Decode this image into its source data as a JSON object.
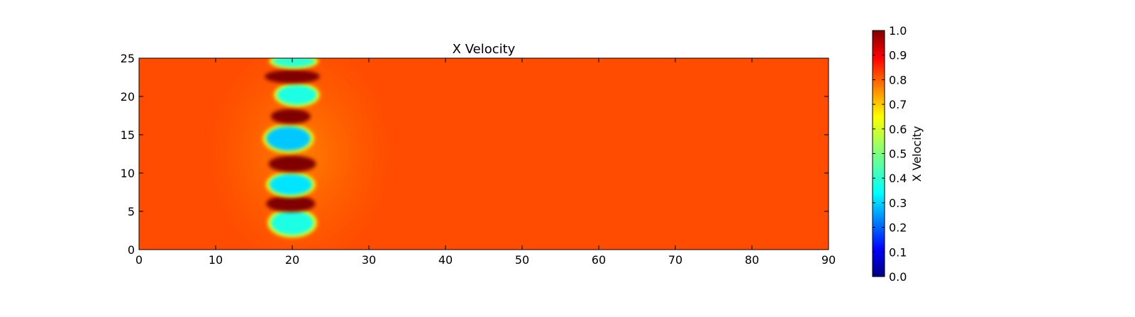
{
  "chart_data": {
    "type": "heatmap",
    "title": "X Velocity",
    "xlabel": "",
    "ylabel": "",
    "xlim": [
      0,
      90
    ],
    "ylim": [
      0,
      25
    ],
    "x_ticks": [
      0,
      10,
      20,
      30,
      40,
      50,
      60,
      70,
      80,
      90
    ],
    "y_ticks": [
      0,
      5,
      10,
      15,
      20,
      25
    ],
    "colormap": "jet",
    "background_value": 0.8,
    "field_features": [
      {
        "kind": "low",
        "cx": 20.0,
        "cy": 3.5,
        "rx": 2.8,
        "ry": 1.6,
        "value": 0.4
      },
      {
        "kind": "high",
        "cx": 19.8,
        "cy": 6.0,
        "rx": 3.2,
        "ry": 1.1,
        "value": 1.0
      },
      {
        "kind": "low",
        "cx": 19.8,
        "cy": 8.5,
        "rx": 2.8,
        "ry": 1.4,
        "value": 0.35
      },
      {
        "kind": "high",
        "cx": 20.0,
        "cy": 11.2,
        "rx": 3.1,
        "ry": 1.1,
        "value": 1.0
      },
      {
        "kind": "low",
        "cx": 19.5,
        "cy": 14.5,
        "rx": 2.9,
        "ry": 1.6,
        "value": 0.32
      },
      {
        "kind": "high",
        "cx": 19.8,
        "cy": 17.4,
        "rx": 2.6,
        "ry": 1.0,
        "value": 1.0
      },
      {
        "kind": "low",
        "cx": 20.6,
        "cy": 20.2,
        "rx": 2.6,
        "ry": 1.3,
        "value": 0.4
      },
      {
        "kind": "high",
        "cx": 20.0,
        "cy": 22.6,
        "rx": 3.6,
        "ry": 0.9,
        "value": 1.0
      },
      {
        "kind": "low",
        "cx": 20.2,
        "cy": 24.6,
        "rx": 2.8,
        "ry": 0.8,
        "value": 0.42
      }
    ],
    "colorbar": {
      "label": "X Velocity",
      "range": [
        0.0,
        1.0
      ],
      "ticks": [
        "0.0",
        "0.1",
        "0.2",
        "0.3",
        "0.4",
        "0.5",
        "0.6",
        "0.7",
        "0.8",
        "0.9",
        "1.0"
      ]
    }
  }
}
